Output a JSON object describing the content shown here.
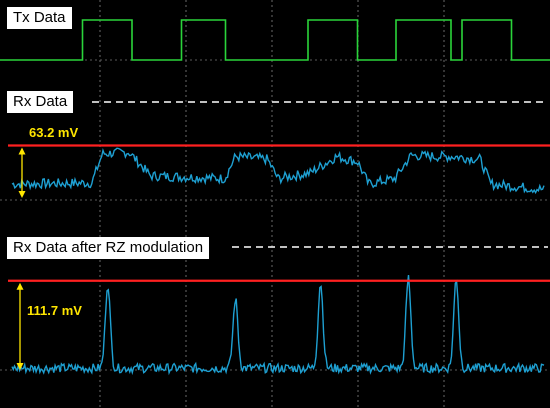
{
  "chart_data": {
    "type": "line",
    "background": "#000000",
    "grid": true,
    "panels": [
      {
        "label": "Tx Data",
        "color": "#2ad43a",
        "kind": "square",
        "low": 0,
        "high": 1,
        "edges": [
          [
            0,
            0
          ],
          [
            0.15,
            1
          ],
          [
            0.24,
            0
          ],
          [
            0.33,
            1
          ],
          [
            0.41,
            0
          ],
          [
            0.56,
            1
          ],
          [
            0.65,
            0
          ],
          [
            0.72,
            1
          ],
          [
            0.82,
            0
          ],
          [
            0.84,
            1
          ],
          [
            0.93,
            0
          ],
          [
            1.0,
            0
          ]
        ]
      },
      {
        "label": "Rx Data",
        "color": "#1ea0d2",
        "kind": "trace",
        "amplitude_label": "63.2 mV",
        "amplitude_color": "#ffe600",
        "threshold_color": "#ff2020",
        "threshold_level": 0.9,
        "envelope": [
          [
            0,
            0.2
          ],
          [
            0.15,
            0.22
          ],
          [
            0.17,
            0.75
          ],
          [
            0.22,
            0.78
          ],
          [
            0.26,
            0.35
          ],
          [
            0.4,
            0.3
          ],
          [
            0.42,
            0.7
          ],
          [
            0.48,
            0.65
          ],
          [
            0.5,
            0.3
          ],
          [
            0.56,
            0.4
          ],
          [
            0.61,
            0.7
          ],
          [
            0.65,
            0.6
          ],
          [
            0.67,
            0.2
          ],
          [
            0.72,
            0.3
          ],
          [
            0.75,
            0.72
          ],
          [
            0.8,
            0.7
          ],
          [
            0.83,
            0.7
          ],
          [
            0.88,
            0.65
          ],
          [
            0.9,
            0.2
          ],
          [
            1.0,
            0.1
          ]
        ],
        "noise": 0.09
      },
      {
        "label": "Rx Data after RZ modulation",
        "color": "#1ea0d2",
        "kind": "pulses",
        "amplitude_label": "111.7 mV",
        "amplitude_color": "#ffe600",
        "threshold_color": "#ff2020",
        "threshold_level": 0.97,
        "pulses": [
          {
            "x": 0.18,
            "h": 0.92
          },
          {
            "x": 0.42,
            "h": 0.75
          },
          {
            "x": 0.58,
            "h": 0.93
          },
          {
            "x": 0.745,
            "h": 0.98
          },
          {
            "x": 0.835,
            "h": 0.98
          }
        ],
        "noise": 0.05
      }
    ]
  }
}
